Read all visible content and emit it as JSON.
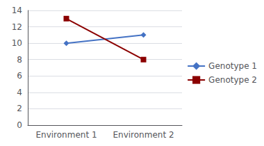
{
  "chart_data": {
    "type": "line",
    "categories": [
      "Environment 1",
      "Environment 2"
    ],
    "series": [
      {
        "name": "Genotype 1",
        "color": "#4472C4",
        "marker": "diamond",
        "values": [
          10,
          11
        ]
      },
      {
        "name": "Genotype 2",
        "color": "#8B0000",
        "marker": "square",
        "values": [
          13,
          8
        ]
      }
    ],
    "ylim": [
      0,
      14
    ],
    "yticks": [
      0,
      2,
      4,
      6,
      8,
      10,
      12,
      14
    ],
    "grid": true,
    "legend": "right"
  }
}
